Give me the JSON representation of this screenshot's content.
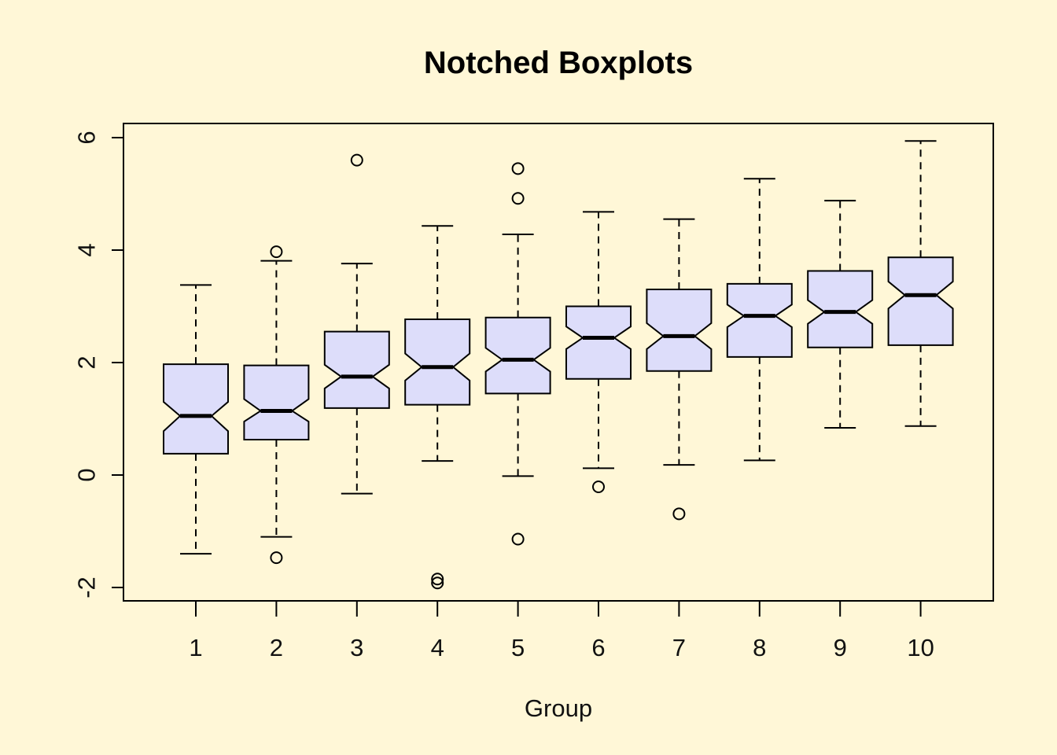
{
  "chart_data": {
    "type": "boxplot",
    "notched": true,
    "title": "Notched Boxplots",
    "xlabel": "Group",
    "ylabel": "",
    "ylim": [
      -2.2,
      6.3
    ],
    "yticks": [
      -2,
      0,
      2,
      4,
      6
    ],
    "ytick_labels": [
      "-2",
      "0",
      "2",
      "4",
      "6"
    ],
    "categories": [
      "1",
      "2",
      "3",
      "4",
      "5",
      "6",
      "7",
      "8",
      "9",
      "10"
    ],
    "grid": false,
    "colors": {
      "background": "#FFF7D7",
      "box_fill": "#DDDDFA",
      "stroke": "#000000"
    },
    "boxes": [
      {
        "group": "1",
        "whisker_low": -1.4,
        "q1": 0.38,
        "median": 1.05,
        "q3": 1.97,
        "whisker_high": 3.38,
        "notch_low": 0.78,
        "notch_high": 1.3,
        "outliers": []
      },
      {
        "group": "2",
        "whisker_low": -1.1,
        "q1": 0.63,
        "median": 1.14,
        "q3": 1.95,
        "whisker_high": 3.81,
        "notch_low": 0.95,
        "notch_high": 1.35,
        "outliers": [
          3.97,
          -1.47
        ]
      },
      {
        "group": "3",
        "whisker_low": -0.33,
        "q1": 1.19,
        "median": 1.75,
        "q3": 2.55,
        "whisker_high": 3.76,
        "notch_low": 1.54,
        "notch_high": 1.96,
        "outliers": [
          5.6
        ]
      },
      {
        "group": "4",
        "whisker_low": 0.25,
        "q1": 1.25,
        "median": 1.92,
        "q3": 2.77,
        "whisker_high": 4.43,
        "notch_low": 1.68,
        "notch_high": 2.16,
        "outliers": [
          -1.85,
          -1.92
        ]
      },
      {
        "group": "5",
        "whisker_low": -0.02,
        "q1": 1.45,
        "median": 2.05,
        "q3": 2.8,
        "whisker_high": 4.28,
        "notch_low": 1.84,
        "notch_high": 2.26,
        "outliers": [
          5.45,
          4.92,
          -1.14
        ]
      },
      {
        "group": "6",
        "whisker_low": 0.12,
        "q1": 1.71,
        "median": 2.44,
        "q3": 3.0,
        "whisker_high": 4.68,
        "notch_low": 2.24,
        "notch_high": 2.64,
        "outliers": [
          -0.21
        ]
      },
      {
        "group": "7",
        "whisker_low": 0.18,
        "q1": 1.85,
        "median": 2.47,
        "q3": 3.3,
        "whisker_high": 4.55,
        "notch_low": 2.24,
        "notch_high": 2.7,
        "outliers": [
          -0.69
        ]
      },
      {
        "group": "8",
        "whisker_low": 0.26,
        "q1": 2.1,
        "median": 2.83,
        "q3": 3.4,
        "whisker_high": 5.27,
        "notch_low": 2.63,
        "notch_high": 3.03,
        "outliers": []
      },
      {
        "group": "9",
        "whisker_low": 0.84,
        "q1": 2.27,
        "median": 2.9,
        "q3": 3.63,
        "whisker_high": 4.88,
        "notch_low": 2.69,
        "notch_high": 3.11,
        "outliers": []
      },
      {
        "group": "10",
        "whisker_low": 0.87,
        "q1": 2.31,
        "median": 3.2,
        "q3": 3.87,
        "whisker_high": 5.94,
        "notch_low": 2.96,
        "notch_high": 3.44,
        "outliers": []
      }
    ]
  }
}
